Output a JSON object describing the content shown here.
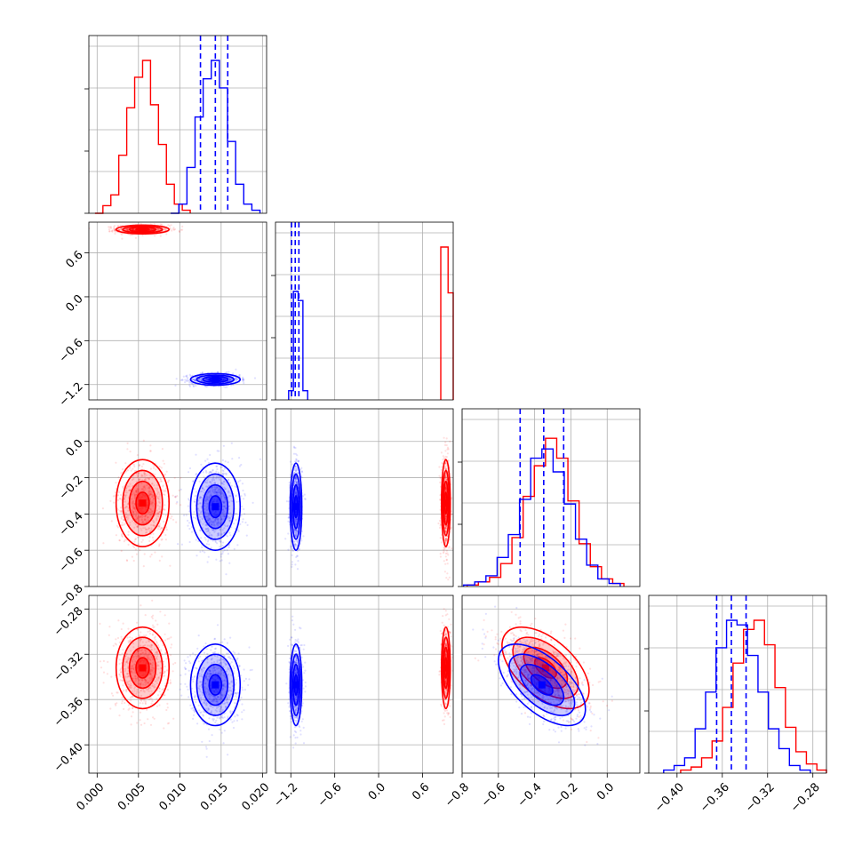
{
  "chart_data": {
    "type": "corner",
    "grid": true,
    "parameters": [
      {
        "index": 0,
        "range": [
          -0.001,
          0.0205
        ],
        "ticks": [
          "0.000",
          "0.005",
          "0.010",
          "0.015",
          "0.020"
        ],
        "tick_values": [
          0.0,
          0.005,
          0.01,
          0.015,
          0.02
        ]
      },
      {
        "index": 1,
        "range": [
          -1.41,
          1.02
        ],
        "ticks": [
          "−1.2",
          "−0.6",
          "0.0",
          "0.6"
        ],
        "tick_values": [
          -1.2,
          -0.6,
          0.0,
          0.6
        ]
      },
      {
        "index": 2,
        "range": [
          -0.8,
          0.18
        ],
        "ticks": [
          "−0.8",
          "−0.6",
          "−0.4",
          "−0.2",
          "0.0"
        ],
        "tick_values": [
          -0.8,
          -0.6,
          -0.4,
          -0.2,
          0.0
        ]
      },
      {
        "index": 3,
        "range": [
          -0.425,
          -0.268
        ],
        "ticks": [
          "−0.40",
          "−0.36",
          "−0.32",
          "−0.28"
        ],
        "tick_values": [
          -0.4,
          -0.36,
          -0.32,
          -0.28
        ]
      }
    ],
    "series": [
      {
        "color": "#ff0000",
        "means": [
          0.0055,
          0.92,
          -0.34,
          -0.332
        ],
        "sigmas": [
          0.0016,
          0.03,
          0.12,
          0.018
        ],
        "correlation_2_3": -0.55,
        "hist_heights": [
          [
            0.0,
            0.05,
            0.12,
            0.38,
            0.69,
            0.89,
            1.0,
            0.71,
            0.45,
            0.19,
            0.06,
            0.02
          ],
          [
            1.0,
            0.7
          ],
          [
            0.01,
            0.03,
            0.06,
            0.15,
            0.32,
            0.59,
            0.79,
            0.97,
            0.84,
            0.56,
            0.28,
            0.13,
            0.05,
            0.02
          ],
          [
            0.02,
            0.04,
            0.1,
            0.21,
            0.43,
            0.72,
            0.94,
            1.0,
            0.84,
            0.56,
            0.3,
            0.14,
            0.06,
            0.02
          ]
        ]
      },
      {
        "color": "#0000ff",
        "means": [
          0.0143,
          -1.13,
          -0.36,
          -0.347
        ],
        "sigmas": [
          0.0015,
          0.04,
          0.12,
          0.018
        ],
        "correlation_2_3": -0.6,
        "hist_heights": [
          [
            0.0,
            0.06,
            0.3,
            0.63,
            0.88,
            1.0,
            0.82,
            0.47,
            0.19,
            0.06,
            0.02
          ],
          [
            0.06,
            0.71,
            0.65,
            0.06
          ],
          [
            0.01,
            0.03,
            0.07,
            0.19,
            0.34,
            0.57,
            0.84,
            0.9,
            0.75,
            0.54,
            0.31,
            0.14,
            0.05,
            0.02
          ],
          [
            0.02,
            0.05,
            0.1,
            0.29,
            0.53,
            0.82,
            1.0,
            0.97,
            0.77,
            0.53,
            0.29,
            0.16,
            0.05,
            0.02
          ]
        ]
      }
    ],
    "quantile_lines": {
      "color": "#0000ff",
      "style": "dashed",
      "values": [
        [
          0.0125,
          0.0143,
          0.0158
        ],
        [
          -1.19,
          -1.14,
          -1.09
        ],
        [
          -0.48,
          -0.35,
          -0.24
        ],
        [
          -0.365,
          -0.352,
          -0.339
        ]
      ]
    }
  }
}
